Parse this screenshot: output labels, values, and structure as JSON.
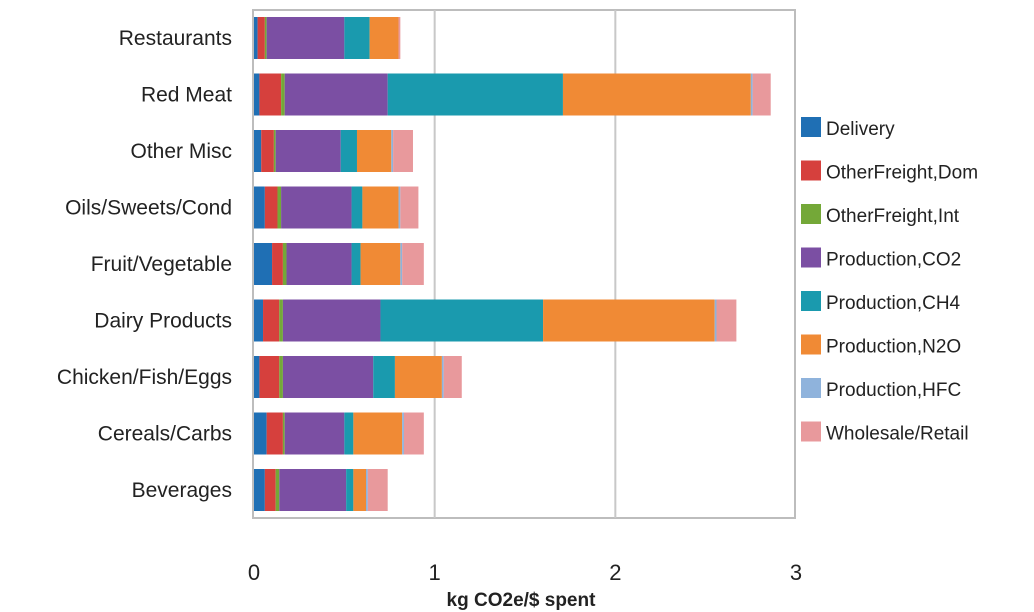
{
  "chart_data": {
    "type": "bar",
    "orientation": "horizontal",
    "stacked": true,
    "title": "",
    "xlabel": "kg CO2e/$ spent",
    "ylabel": "",
    "xlim": [
      0,
      3
    ],
    "xticks": [
      0,
      1,
      2,
      3
    ],
    "grid": "vertical",
    "legend_position": "right",
    "categories": [
      "Restaurants",
      "Red Meat",
      "Other Misc",
      "Oils/Sweets/Cond",
      "Fruit/Vegetable",
      "Dairy Products",
      "Chicken/Fish/Eggs",
      "Cereals/Carbs",
      "Beverages"
    ],
    "series": [
      {
        "name": "Delivery",
        "color": "#1f6fb4",
        "values": [
          0.02,
          0.03,
          0.04,
          0.06,
          0.1,
          0.05,
          0.03,
          0.07,
          0.06
        ]
      },
      {
        "name": "OtherFreight,Dom",
        "color": "#d6403d",
        "values": [
          0.04,
          0.12,
          0.07,
          0.07,
          0.06,
          0.09,
          0.11,
          0.09,
          0.06
        ]
      },
      {
        "name": "OtherFreight,Int",
        "color": "#74a838",
        "values": [
          0.01,
          0.02,
          0.01,
          0.02,
          0.02,
          0.02,
          0.02,
          0.01,
          0.02
        ]
      },
      {
        "name": "Production,CO2",
        "color": "#7b4fa3",
        "values": [
          0.43,
          0.57,
          0.36,
          0.39,
          0.36,
          0.54,
          0.5,
          0.33,
          0.37
        ]
      },
      {
        "name": "Production,CH4",
        "color": "#1a9aae",
        "values": [
          0.14,
          0.97,
          0.09,
          0.06,
          0.05,
          0.9,
          0.12,
          0.05,
          0.04
        ]
      },
      {
        "name": "Production,N2O",
        "color": "#f08a35",
        "values": [
          0.16,
          1.04,
          0.19,
          0.2,
          0.22,
          0.95,
          0.26,
          0.27,
          0.07
        ]
      },
      {
        "name": "Production,HFC",
        "color": "#8fb3dc",
        "values": [
          0,
          0.01,
          0.01,
          0.01,
          0.01,
          0.01,
          0.01,
          0.01,
          0.01
        ]
      },
      {
        "name": "Wholesale/Retail",
        "color": "#e8999c",
        "values": [
          0.01,
          0.1,
          0.11,
          0.1,
          0.12,
          0.11,
          0.1,
          0.11,
          0.11
        ]
      }
    ]
  }
}
